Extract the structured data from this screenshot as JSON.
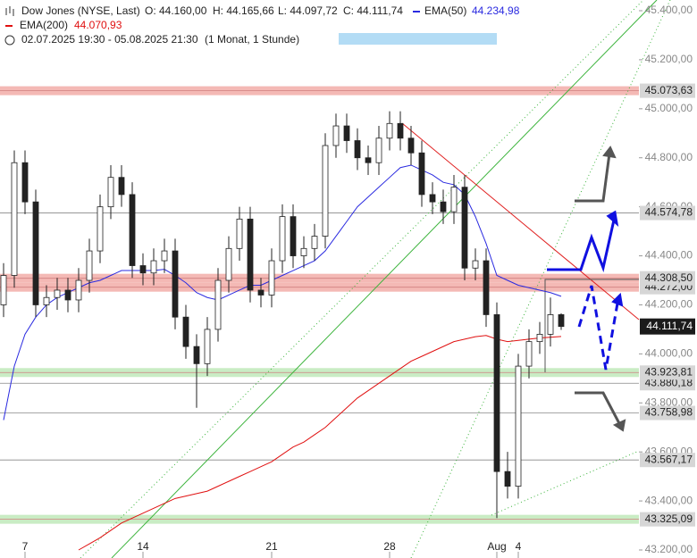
{
  "chart_data": {
    "type": "candlestick",
    "header": {
      "instrument": "Dow Jones (NYSE, Last)",
      "open": "O: 44.160,00",
      "high": "H: 44.165,66",
      "low": "L: 44.097,72",
      "close": "C: 44.111,74",
      "ema50_label": "EMA(50)",
      "ema50_value": "44.234,98",
      "ema200_label": "EMA(200)",
      "ema200_value": "44.070,93",
      "range": "02.07.2025 19:30 - 05.08.2025 21:30",
      "period": "(1 Monat, 1 Stunde)"
    },
    "categories": [
      null,
      null,
      "7",
      null,
      null,
      null,
      null,
      null,
      null,
      null,
      null,
      null,
      null,
      "14",
      null,
      null,
      null,
      null,
      null,
      null,
      null,
      null,
      null,
      null,
      null,
      "21",
      null,
      null,
      null,
      null,
      null,
      null,
      null,
      null,
      null,
      null,
      "28",
      null,
      null,
      null,
      null,
      null,
      null,
      null,
      null,
      null,
      "Aug",
      null,
      "4",
      null,
      null,
      null,
      null
    ],
    "open": [
      44200,
      44320,
      44780,
      44620,
      44200,
      44230,
      44260,
      44220,
      44300,
      44420,
      44600,
      44720,
      44650,
      44360,
      44330,
      44380,
      44420,
      44150,
      44030,
      43960,
      44100,
      44300,
      44430,
      44550,
      44260,
      44240,
      44380,
      44560,
      44400,
      44430,
      44480,
      44850,
      44930,
      44870,
      44800,
      44780,
      44880,
      44940,
      44880,
      44820,
      44650,
      44620,
      44580,
      44680,
      44350,
      44380,
      44160,
      43520,
      43460,
      43950,
      44050,
      44080,
      44160
    ],
    "high": [
      44370,
      44830,
      44830,
      44670,
      44280,
      44310,
      44310,
      44350,
      44470,
      44650,
      44770,
      44770,
      44700,
      44410,
      44430,
      44470,
      44470,
      44200,
      44080,
      44150,
      44350,
      44480,
      44600,
      44600,
      44310,
      44430,
      44610,
      44610,
      44480,
      44530,
      44900,
      44980,
      44980,
      44920,
      44850,
      44930,
      44990,
      44990,
      44930,
      44870,
      44700,
      44670,
      44730,
      44730,
      44430,
      44430,
      44210,
      43600,
      44000,
      44100,
      44130,
      44230,
      44165.66
    ],
    "low": [
      44150,
      44270,
      44570,
      44150,
      44150,
      44180,
      44170,
      44170,
      44250,
      44370,
      44550,
      44600,
      44310,
      44280,
      44280,
      44330,
      44100,
      43980,
      43780,
      43910,
      44050,
      44250,
      44380,
      44210,
      44190,
      44190,
      44330,
      44350,
      44350,
      44380,
      44430,
      44800,
      44820,
      44750,
      44730,
      44730,
      44830,
      44830,
      44770,
      44600,
      44570,
      44530,
      44530,
      44300,
      44300,
      44110,
      43330,
      43410,
      43410,
      43900,
      44000,
      44030,
      44097.72
    ],
    "close": [
      44320,
      44780,
      44620,
      44200,
      44230,
      44260,
      44220,
      44300,
      44420,
      44600,
      44720,
      44650,
      44360,
      44330,
      44380,
      44420,
      44150,
      44030,
      43960,
      44100,
      44300,
      44430,
      44550,
      44260,
      44240,
      44380,
      44560,
      44400,
      44430,
      44480,
      44850,
      44930,
      44870,
      44800,
      44780,
      44880,
      44940,
      44880,
      44820,
      44650,
      44620,
      44580,
      44680,
      44350,
      44380,
      44160,
      43520,
      43460,
      43950,
      44050,
      44080,
      44160,
      44111.74
    ],
    "series": [
      {
        "name": "EMA(50)",
        "color": "#2a2ae0",
        "values": [
          43730,
          43950,
          44080,
          44150,
          44200,
          44230,
          44250,
          44270,
          44290,
          44300,
          44320,
          44340,
          44340,
          44340,
          44340,
          44345,
          44320,
          44290,
          44250,
          44230,
          44220,
          44240,
          44260,
          44280,
          44280,
          44300,
          44320,
          44340,
          44360,
          44380,
          44420,
          44480,
          44540,
          44600,
          44640,
          44680,
          44720,
          44760,
          44770,
          44750,
          44730,
          44700,
          44690,
          44650,
          44560,
          44450,
          44320,
          44300,
          44280,
          44270,
          44260,
          44250,
          44234.98
        ]
      },
      {
        "name": "EMA(200)",
        "color": "#e01010",
        "values": [
          null,
          null,
          null,
          null,
          null,
          null,
          null,
          43200,
          43225,
          43250,
          43280,
          43310,
          43330,
          43350,
          43370,
          43390,
          43410,
          43420,
          43430,
          43440,
          43460,
          43480,
          43500,
          43520,
          43540,
          43560,
          43590,
          43620,
          43640,
          43670,
          43700,
          43740,
          43780,
          43820,
          43850,
          43880,
          43910,
          43940,
          43970,
          43990,
          44010,
          44030,
          44050,
          44060,
          44070,
          44075,
          44060,
          44050,
          44055,
          44060,
          44065,
          44068,
          44070.93
        ]
      }
    ],
    "ylim": [
      43200,
      45400
    ],
    "yticks": [
      {
        "value": 43200,
        "label": "43.200,00"
      },
      {
        "value": 43400,
        "label": "43.400,00"
      },
      {
        "value": 43600,
        "label": "43.600,00"
      },
      {
        "value": 43800,
        "label": "43.800,00"
      },
      {
        "value": 44000,
        "label": "44.000,00"
      },
      {
        "value": 44200,
        "label": "44.200,00"
      },
      {
        "value": 44400,
        "label": "44.400,00"
      },
      {
        "value": 44600,
        "label": "44.600,00"
      },
      {
        "value": 44800,
        "label": "44.800,00"
      },
      {
        "value": 45000,
        "label": "45.000,00"
      },
      {
        "value": 45200,
        "label": "45.200,00"
      },
      {
        "value": 45400,
        "label": "45.400,00"
      }
    ],
    "levels": [
      {
        "value": 45073.63,
        "label": "45.073,63",
        "color": "#f4b9b5",
        "style": "band"
      },
      {
        "value": 44574.78,
        "label": "44.574,78",
        "color": "#888888",
        "style": "line"
      },
      {
        "value": 44272.0,
        "label": "44.272,00",
        "color": "#f4b9b5",
        "style": "band"
      },
      {
        "value": 44308.5,
        "label": "44.308,50",
        "color": "#f4b9b5",
        "style": "band"
      },
      {
        "value": 43880.18,
        "label": "43.880,18",
        "color": "#888888",
        "style": "line"
      },
      {
        "value": 43923.81,
        "label": "43.923,81",
        "color": "#c9ecc4",
        "style": "band"
      },
      {
        "value": 43758.98,
        "label": "43.758,98",
        "color": "#888888",
        "style": "line"
      },
      {
        "value": 43567.17,
        "label": "43.567,17",
        "color": "#888888",
        "style": "line"
      },
      {
        "value": 43325.09,
        "label": "43.325,09",
        "color": "#c9ecc4",
        "style": "band"
      }
    ],
    "last_price": {
      "value": 44111.74,
      "label": "44.111,74"
    },
    "up_color": "#ffffff",
    "down_color": "#222222"
  }
}
